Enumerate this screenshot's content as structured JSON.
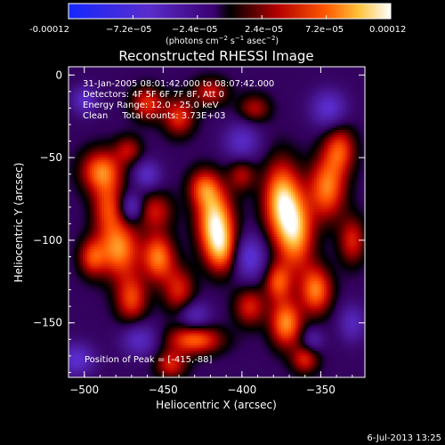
{
  "colorbar": {
    "ticks": [
      "-0.00012",
      "−7.2e−05",
      "−2.4e−05",
      "2.4e−05",
      "7.2e−05",
      "0.00012"
    ],
    "tick_values": [
      -0.00012,
      -7.2e-05,
      -2.4e-05,
      2.4e-05,
      7.2e-05,
      0.00012
    ],
    "range": [
      -0.00012,
      0.00012
    ],
    "units": {
      "a": "(photons cm",
      "sup1": "−2",
      "b": " s",
      "sup2": "−1",
      "c": " asec",
      "sup3": "−2",
      "d": ")"
    }
  },
  "chart_data": {
    "type": "heatmap",
    "title": "Reconstructed RHESSI Image",
    "xlabel": "Heliocentric X (arcsec)",
    "ylabel": "Heliocentric Y (arcsec)",
    "xlim": [
      -510,
      -322
    ],
    "ylim": [
      -183,
      5
    ],
    "xticks": [
      -500,
      -450,
      -400,
      -350
    ],
    "yticks": [
      0,
      -50,
      -100,
      -150
    ],
    "annotations": [
      "31-Jan-2005 08:01:42.000 to 08:07:42.000",
      "Detectors: 4F 5F 6F 7F 8F, Att 0",
      "Energy Range: 12.0 - 25.0 keV",
      "Clean     Total counts: 3.73E+03"
    ],
    "peak_text": "Position of Peak = [-415,-88]",
    "peak": [
      -415,
      -88
    ],
    "colormap": "red-temperature with blue-purple negative extension",
    "blobs": [
      [
        -417,
        -88,
        8,
        13,
        1.0
      ],
      [
        -424,
        -68,
        7,
        8,
        0.6
      ],
      [
        -413,
        -106,
        7,
        10,
        0.65
      ],
      [
        -489,
        -58,
        9,
        9,
        0.75
      ],
      [
        -485,
        -80,
        7,
        11,
        0.55
      ],
      [
        -478,
        -105,
        9,
        12,
        0.8
      ],
      [
        -495,
        -110,
        6,
        8,
        0.55
      ],
      [
        -470,
        -135,
        7,
        10,
        0.6
      ],
      [
        -453,
        -110,
        7,
        10,
        0.75
      ],
      [
        -455,
        -82,
        8,
        8,
        0.45
      ],
      [
        -440,
        -130,
        7,
        10,
        0.5
      ],
      [
        -430,
        -160,
        12,
        6,
        0.7
      ],
      [
        -445,
        -175,
        7,
        6,
        0.5
      ],
      [
        -460,
        -17,
        7,
        7,
        0.55
      ],
      [
        -440,
        -25,
        7,
        8,
        0.55
      ],
      [
        -420,
        -10,
        8,
        6,
        0.45
      ],
      [
        -375,
        -75,
        8,
        16,
        0.9
      ],
      [
        -366,
        -95,
        8,
        16,
        0.85
      ],
      [
        -346,
        -68,
        8,
        13,
        0.75
      ],
      [
        -353,
        -130,
        7,
        10,
        0.75
      ],
      [
        -372,
        -150,
        7,
        10,
        0.8
      ],
      [
        -377,
        -125,
        6,
        8,
        0.6
      ],
      [
        -338,
        -45,
        7,
        10,
        0.6
      ],
      [
        -360,
        -172,
        6,
        6,
        0.5
      ],
      [
        -395,
        -140,
        7,
        8,
        0.5
      ],
      [
        -400,
        -60,
        6,
        7,
        0.4
      ],
      [
        -330,
        -100,
        6,
        10,
        0.5
      ],
      [
        -392,
        -20,
        7,
        6,
        0.4
      ],
      [
        -472,
        -45,
        6,
        6,
        0.4
      ],
      [
        -500,
        -15,
        6,
        6,
        -0.45
      ],
      [
        -460,
        -60,
        6,
        6,
        -0.45
      ],
      [
        -470,
        -80,
        5,
        6,
        -0.5
      ],
      [
        -465,
        -160,
        8,
        7,
        -0.45
      ],
      [
        -505,
        -172,
        8,
        7,
        -0.5
      ],
      [
        -400,
        -40,
        8,
        8,
        -0.45
      ],
      [
        -395,
        -110,
        7,
        9,
        -0.55
      ],
      [
        -430,
        -145,
        7,
        6,
        -0.4
      ],
      [
        -345,
        -20,
        8,
        8,
        -0.5
      ],
      [
        -330,
        -150,
        6,
        8,
        -0.4
      ],
      [
        -355,
        -160,
        5,
        5,
        -0.3
      ]
    ]
  },
  "footer": {
    "timestamp": "6-Jul-2013 13:25"
  }
}
